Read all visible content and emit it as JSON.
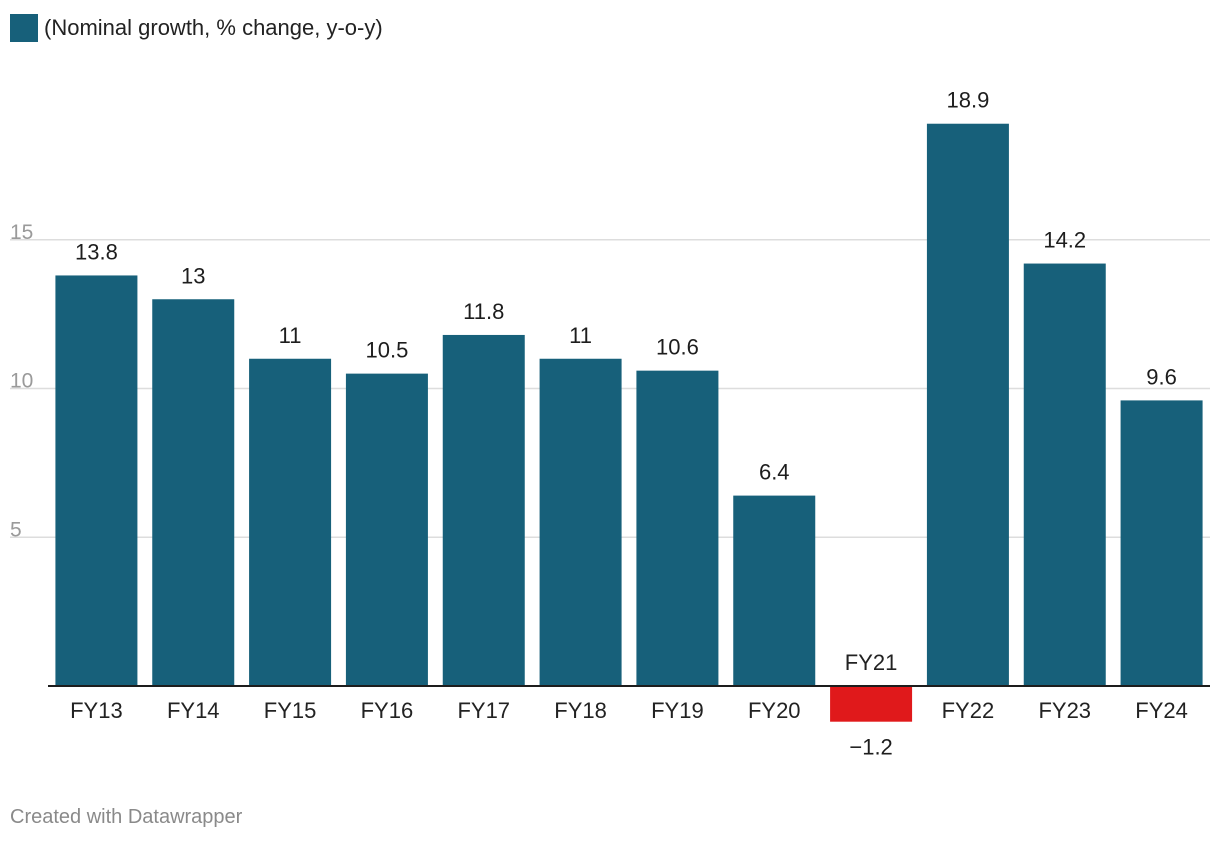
{
  "chart_data": {
    "type": "bar",
    "title": "",
    "legend": [
      "(Nominal growth, % change, y-o-y)"
    ],
    "legend_placement": "top-left",
    "categories": [
      "FY13",
      "FY14",
      "FY15",
      "FY16",
      "FY17",
      "FY18",
      "FY19",
      "FY20",
      "FY21",
      "FY22",
      "FY23",
      "FY24"
    ],
    "series": [
      {
        "name": "(Nominal growth, % change, y-o-y)",
        "values": [
          13.8,
          13,
          11,
          10.5,
          11.8,
          11,
          10.6,
          6.4,
          -1.2,
          18.9,
          14.2,
          9.6
        ],
        "labels": [
          "13.8",
          "13",
          "11",
          "10.5",
          "11.8",
          "11",
          "10.6",
          "6.4",
          "−1.2",
          "18.9",
          "14.2",
          "9.6"
        ]
      }
    ],
    "xlabel": "",
    "ylabel": "",
    "ylim": [
      -1.2,
      18.9
    ],
    "yticks": [
      5,
      10,
      15
    ],
    "ytick_labels": [
      "5",
      "10",
      "15"
    ],
    "grid": true,
    "colors": {
      "positive": "#17607a",
      "negative": "#e0191b",
      "grid": "#dddddd",
      "axis": "#1d1d1d"
    }
  },
  "footer": {
    "credit": "Created with Datawrapper"
  }
}
